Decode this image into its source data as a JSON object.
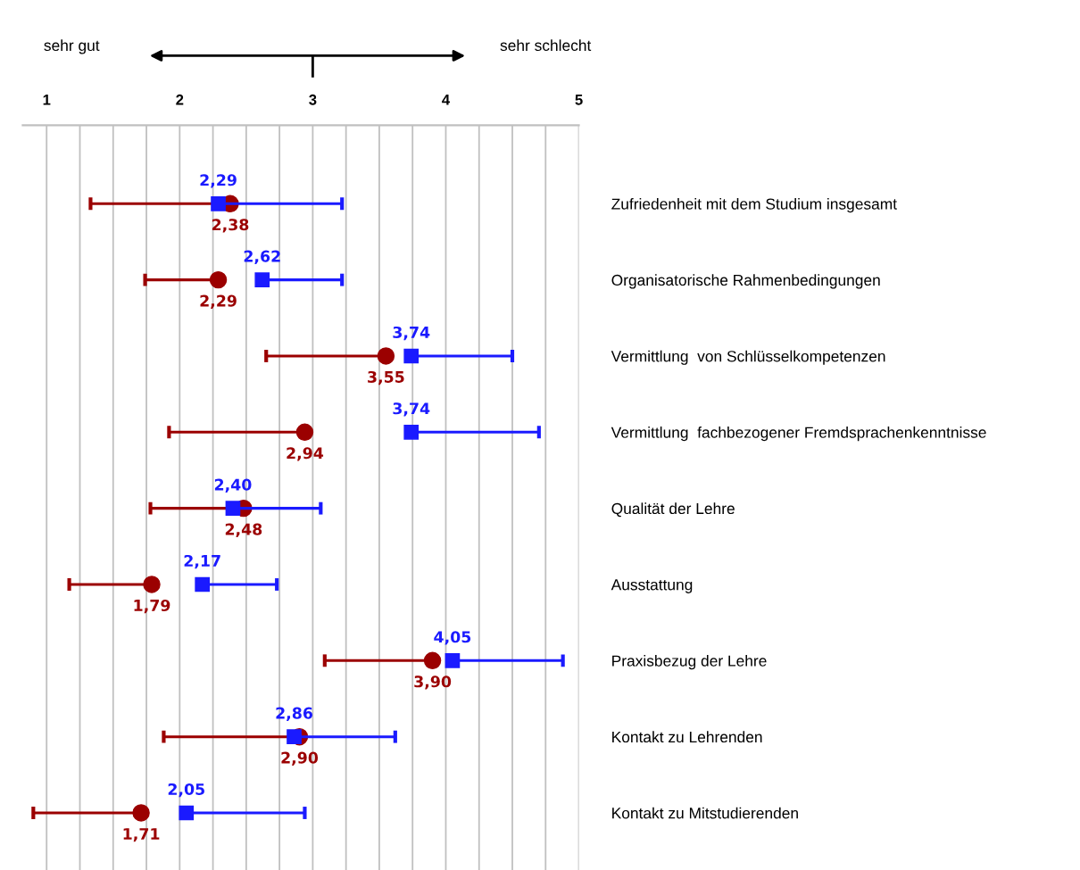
{
  "chart_data": {
    "type": "scatter",
    "orientation": "horizontal",
    "categories": [
      "Zufriedenheit mit dem Studium insgesamt",
      "Organisatorische Rahmenbedingungen",
      "Vermittlung  von Schlüsselkompetenzen",
      "Vermittlung  fachbezogener Fremdsprachenkenntnisse",
      "Qualität der Lehre",
      "Ausstattung",
      "Praxisbezug der Lehre",
      "Kontakt zu Lehrenden",
      "Kontakt zu Mitstudierenden"
    ],
    "series": [
      {
        "color": "#9b0000",
        "marker": "circle",
        "values": [
          2.38,
          2.29,
          3.55,
          2.94,
          2.48,
          1.79,
          3.9,
          2.9,
          1.71
        ],
        "value_labels": [
          "2,38",
          "2,29",
          "3,55",
          "2,94",
          "2,48",
          "1,79",
          "3,90",
          "2,90",
          "1,71"
        ],
        "errors": [
          [
            1.33,
            2.38
          ],
          [
            1.74,
            2.29
          ],
          [
            2.65,
            3.55
          ],
          [
            1.92,
            2.94
          ],
          [
            1.78,
            2.48
          ],
          [
            1.17,
            1.79
          ],
          [
            3.09,
            3.9
          ],
          [
            1.88,
            2.9
          ],
          [
            0.9,
            1.71
          ]
        ]
      },
      {
        "color": "#1a1aff",
        "marker": "square",
        "values": [
          2.29,
          2.62,
          3.74,
          3.74,
          2.4,
          2.17,
          4.05,
          2.86,
          2.05
        ],
        "value_labels": [
          "2,29",
          "2,62",
          "3,74",
          "3,74",
          "2,40",
          "2,17",
          "4,05",
          "2,86",
          "2,05"
        ],
        "errors": [
          [
            2.29,
            3.22
          ],
          [
            2.62,
            3.22
          ],
          [
            3.74,
            4.5
          ],
          [
            3.74,
            4.7
          ],
          [
            2.4,
            3.06
          ],
          [
            2.17,
            2.73
          ],
          [
            4.05,
            4.88
          ],
          [
            2.86,
            3.62
          ],
          [
            2.05,
            2.94
          ]
        ]
      }
    ],
    "xlim": [
      0.82,
      5
    ],
    "xticks": [
      1,
      {
        "value": 1.25,
        "label": null
      },
      {
        "value": 1.5,
        "label": null
      },
      {
        "value": 1.75,
        "label": null
      },
      2,
      {
        "value": 2.25,
        "label": null
      },
      {
        "value": 2.5,
        "label": null
      },
      {
        "value": 2.75,
        "label": null
      },
      3,
      {
        "value": 3.25,
        "label": null
      },
      {
        "value": 3.5,
        "label": null
      },
      {
        "value": 3.75,
        "label": null
      },
      4,
      {
        "value": 4.25,
        "label": null
      },
      {
        "value": 4.5,
        "label": null
      },
      {
        "value": 4.75,
        "label": null
      },
      5
    ],
    "grid": "x",
    "annotations": [
      "sehr gut",
      "sehr schlecht"
    ]
  }
}
